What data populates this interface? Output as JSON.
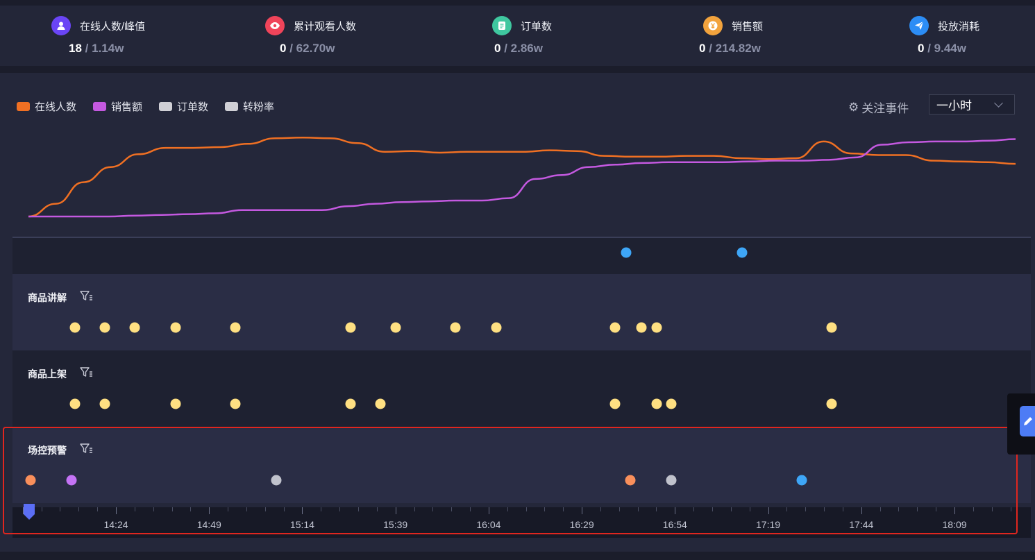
{
  "stats": [
    {
      "label": "在线人数/峰值",
      "current": "18",
      "total": "1.14w",
      "icon": "user-icon",
      "color": "#6a45f5"
    },
    {
      "label": "累计观看人数",
      "current": "0",
      "total": "62.70w",
      "icon": "eye-icon",
      "color": "#f0445a"
    },
    {
      "label": "订单数",
      "current": "0",
      "total": "2.86w",
      "icon": "order-icon",
      "color": "#3fc79f"
    },
    {
      "label": "销售额",
      "current": "0",
      "total": "214.82w",
      "icon": "yen-icon",
      "color": "#f2a33d"
    },
    {
      "label": "投放消耗",
      "current": "0",
      "total": "9.44w",
      "icon": "send-icon",
      "color": "#2c8df5"
    }
  ],
  "separator": "/",
  "legend": [
    {
      "label": "在线人数",
      "color": "#f07023"
    },
    {
      "label": "销售额",
      "color": "#c459e0"
    },
    {
      "label": "订单数",
      "color": "#d0d0d6"
    },
    {
      "label": "转粉率",
      "color": "#d0d0d6"
    }
  ],
  "toolbar": {
    "focus_events": "关注事件",
    "range_value": "一小时"
  },
  "chart_data": {
    "type": "line",
    "series": [
      {
        "name": "在线人数",
        "color": "#f07023",
        "values": [
          0,
          16,
          43,
          62,
          78,
          86,
          86,
          87,
          91,
          98,
          99,
          98,
          92,
          81,
          82,
          80,
          81,
          81,
          81,
          83,
          82,
          76,
          75,
          75,
          76,
          76,
          73,
          72,
          73,
          94,
          79,
          77,
          77,
          70,
          69,
          68,
          66
        ]
      },
      {
        "name": "销售额",
        "color": "#c459e0",
        "values": [
          0,
          0,
          0,
          0,
          1,
          2,
          3,
          4,
          8,
          8,
          8,
          8,
          13,
          16,
          18,
          19,
          20,
          20,
          23,
          47,
          52,
          62,
          65,
          67,
          68,
          68,
          68,
          69,
          70,
          70,
          71,
          74,
          90,
          93,
          94,
          94,
          95,
          97
        ]
      }
    ],
    "ylim": [
      0,
      100
    ]
  },
  "events_lane": {
    "dots": [
      {
        "t": 16.683,
        "color": "#3ea6f7"
      },
      {
        "t": 17.2,
        "color": "#3ea6f7"
      }
    ]
  },
  "lanes": [
    {
      "title": "商品讲解",
      "dots": [
        {
          "t": 14.217,
          "color": "#ffe082"
        },
        {
          "t": 14.35,
          "color": "#ffe082"
        },
        {
          "t": 14.483,
          "color": "#ffe082"
        },
        {
          "t": 14.667,
          "color": "#ffe082"
        },
        {
          "t": 14.933,
          "color": "#ffe082"
        },
        {
          "t": 15.45,
          "color": "#ffe082"
        },
        {
          "t": 15.65,
          "color": "#ffe082"
        },
        {
          "t": 15.917,
          "color": "#ffe082"
        },
        {
          "t": 16.1,
          "color": "#ffe082"
        },
        {
          "t": 16.633,
          "color": "#ffe082"
        },
        {
          "t": 16.75,
          "color": "#ffe082"
        },
        {
          "t": 16.817,
          "color": "#ffe082"
        },
        {
          "t": 17.6,
          "color": "#ffe082"
        }
      ]
    },
    {
      "title": "商品上架",
      "dots": [
        {
          "t": 14.217,
          "color": "#ffe082"
        },
        {
          "t": 14.35,
          "color": "#ffe082"
        },
        {
          "t": 14.667,
          "color": "#ffe082"
        },
        {
          "t": 14.933,
          "color": "#ffe082"
        },
        {
          "t": 15.45,
          "color": "#ffe082"
        },
        {
          "t": 15.583,
          "color": "#ffe082"
        },
        {
          "t": 16.633,
          "color": "#ffe082"
        },
        {
          "t": 16.817,
          "color": "#ffe082"
        },
        {
          "t": 16.883,
          "color": "#ffe082"
        },
        {
          "t": 17.6,
          "color": "#ffe082"
        }
      ]
    },
    {
      "title": "场控预警",
      "dots": [
        {
          "t": 14.017,
          "color": "#f98f5b"
        },
        {
          "t": 14.2,
          "color": "#c473f5"
        },
        {
          "t": 15.117,
          "color": "#c0c2cc"
        },
        {
          "t": 16.7,
          "color": "#f98f5b"
        },
        {
          "t": 16.883,
          "color": "#c0c2cc"
        },
        {
          "t": 17.467,
          "color": "#3ea6f7"
        }
      ]
    }
  ],
  "axis": {
    "ticks": [
      "14:24",
      "14:49",
      "15:14",
      "15:39",
      "16:04",
      "16:29",
      "16:54",
      "17:19",
      "17:44",
      "18:09"
    ]
  }
}
